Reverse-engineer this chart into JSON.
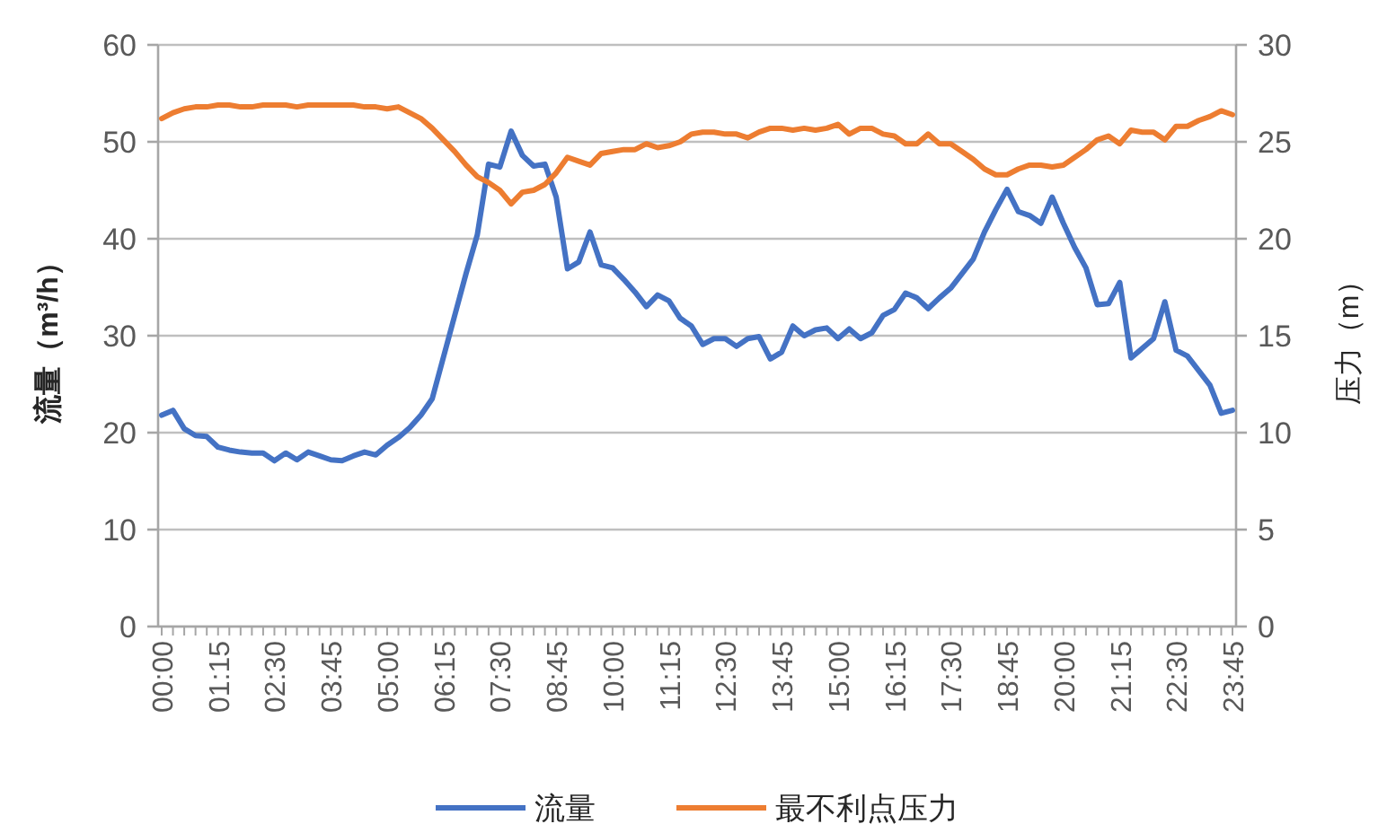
{
  "chart_data": {
    "type": "line",
    "categories": [
      "00:00",
      null,
      null,
      null,
      null,
      "01:15",
      null,
      null,
      null,
      null,
      "02:30",
      null,
      null,
      null,
      null,
      "03:45",
      null,
      null,
      null,
      null,
      "05:00",
      null,
      null,
      null,
      null,
      "06:15",
      null,
      null,
      null,
      null,
      "07:30",
      null,
      null,
      null,
      null,
      "08:45",
      null,
      null,
      null,
      null,
      "10:00",
      null,
      null,
      null,
      null,
      "11:15",
      null,
      null,
      null,
      null,
      "12:30",
      null,
      null,
      null,
      null,
      "13:45",
      null,
      null,
      null,
      null,
      "15:00",
      null,
      null,
      null,
      null,
      "16:15",
      null,
      null,
      null,
      null,
      "17:30",
      null,
      null,
      null,
      null,
      "18:45",
      null,
      null,
      null,
      null,
      "20:00",
      null,
      null,
      null,
      null,
      "21:15",
      null,
      null,
      null,
      null,
      "22:30",
      null,
      null,
      null,
      null,
      "23:45"
    ],
    "series": [
      {
        "name": "流量",
        "color": "#4472c4",
        "axis": "y",
        "values": [
          21.8,
          22.3,
          20.4,
          19.7,
          19.6,
          18.5,
          18.2,
          18.0,
          17.9,
          17.9,
          17.1,
          17.9,
          17.2,
          18.0,
          17.6,
          17.2,
          17.1,
          17.6,
          18.0,
          17.7,
          18.7,
          19.5,
          20.5,
          21.8,
          23.5,
          27.8,
          32.1,
          36.4,
          40.4,
          47.7,
          47.4,
          51.1,
          48.6,
          47.5,
          47.7,
          44.3,
          36.9,
          37.6,
          40.7,
          37.3,
          37.0,
          35.8,
          34.5,
          33.0,
          34.2,
          33.6,
          31.8,
          31.0,
          29.1,
          29.7,
          29.7,
          28.9,
          29.7,
          29.9,
          27.6,
          28.3,
          31.0,
          30.0,
          30.6,
          30.8,
          29.7,
          30.7,
          29.7,
          30.3,
          32.1,
          32.7,
          34.4,
          33.9,
          32.8,
          33.9,
          34.9,
          36.4,
          37.9,
          40.7,
          43.0,
          45.1,
          42.8,
          42.4,
          41.6,
          44.3,
          41.6,
          39.1,
          37.0,
          33.2,
          33.3,
          35.5,
          27.7,
          28.7,
          29.7,
          33.5,
          28.5,
          27.9,
          26.4,
          24.9,
          22.0,
          22.3
        ]
      },
      {
        "name": "最不利点压力",
        "color": "#ed7d31",
        "axis": "y2",
        "values": [
          26.2,
          26.5,
          26.7,
          26.8,
          26.8,
          26.9,
          26.9,
          26.8,
          26.8,
          26.9,
          26.9,
          26.9,
          26.8,
          26.9,
          26.9,
          26.9,
          26.9,
          26.9,
          26.8,
          26.8,
          26.7,
          26.8,
          26.5,
          26.2,
          25.7,
          25.1,
          24.5,
          23.8,
          23.2,
          22.9,
          22.5,
          21.8,
          22.4,
          22.5,
          22.8,
          23.4,
          24.2,
          24.0,
          23.8,
          24.4,
          24.5,
          24.6,
          24.6,
          24.9,
          24.7,
          24.8,
          25.0,
          25.4,
          25.5,
          25.5,
          25.4,
          25.4,
          25.2,
          25.5,
          25.7,
          25.7,
          25.6,
          25.7,
          25.6,
          25.7,
          25.9,
          25.4,
          25.7,
          25.7,
          25.4,
          25.3,
          24.9,
          24.9,
          25.4,
          24.9,
          24.9,
          24.5,
          24.1,
          23.6,
          23.3,
          23.3,
          23.6,
          23.8,
          23.8,
          23.7,
          23.8,
          24.2,
          24.6,
          25.1,
          25.3,
          24.9,
          25.6,
          25.5,
          25.5,
          25.1,
          25.8,
          25.8,
          26.1,
          26.3,
          26.6,
          26.4
        ]
      }
    ],
    "ylabel": "流量（m³/h）",
    "y2label": "压力（m）",
    "ylim": [
      0,
      60
    ],
    "yticks": [
      0,
      10,
      20,
      30,
      40,
      50,
      60
    ],
    "y2lim": [
      0,
      30
    ],
    "y2ticks": [
      0,
      5,
      10,
      15,
      20,
      25,
      30
    ],
    "grid": "y",
    "legend": "bottom"
  }
}
